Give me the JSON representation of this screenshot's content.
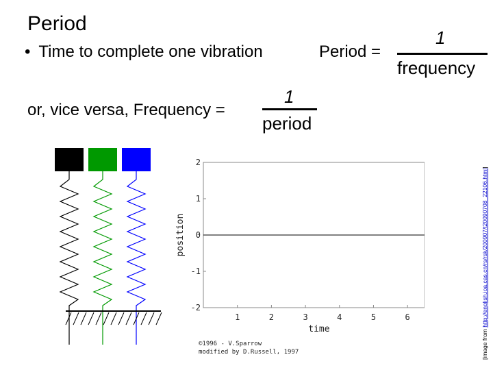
{
  "slide": {
    "title": "Period",
    "bullet_text": "Time to complete one vibration",
    "formula1": {
      "label": "Period =",
      "numerator": "1",
      "denominator": "frequency"
    },
    "vice_text": "or, vice versa,",
    "formula2": {
      "label": "Frequency =",
      "numerator": "1",
      "denominator": "period"
    },
    "credit_prefix": "[image from ",
    "credit_link": "http://english.ioa.cas.cn/rs/rsk/200907/t20090708_22106.html",
    "credit_suffix": "]"
  },
  "figure": {
    "block_colors": [
      "#000000",
      "#009900",
      "#0000ff"
    ],
    "ylabel": "position",
    "xlabel": "time",
    "y_ticks": [
      "2",
      "1",
      "0",
      "-1",
      "-2"
    ],
    "x_ticks": [
      "1",
      "2",
      "3",
      "4",
      "5",
      "6"
    ],
    "copyright": "©1996 - V.Sparrow",
    "modified": "modified by D.Russell, 1997"
  },
  "chart_data": {
    "type": "line",
    "xlabel": "time",
    "ylabel": "position",
    "xlim": [
      0,
      6.5
    ],
    "ylim": [
      -2,
      2
    ],
    "x_ticks": [
      1,
      2,
      3,
      4,
      5,
      6
    ],
    "y_ticks": [
      2,
      1,
      0,
      -1,
      -2
    ],
    "series": [
      {
        "x": [
          0,
          6.5
        ],
        "y": [
          0,
          0
        ]
      }
    ],
    "grid": false
  }
}
